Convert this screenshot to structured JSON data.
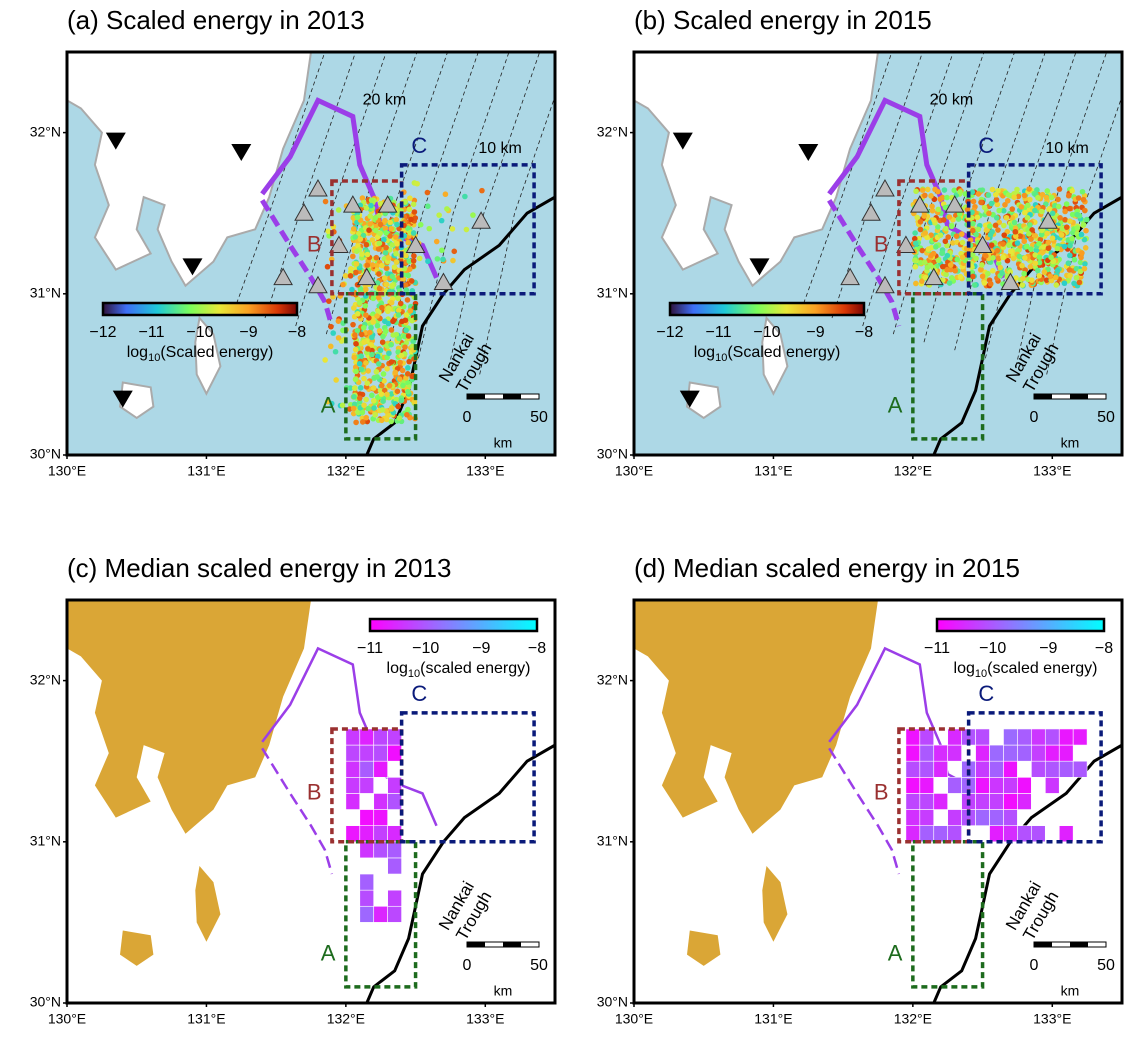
{
  "axes": {
    "lat_labels": [
      "32°N",
      "31°N",
      "30°N"
    ],
    "lon_labels": [
      "130°E",
      "131°E",
      "132°E",
      "133°E"
    ]
  },
  "map_labels": {
    "depth_20": "20 km",
    "depth_10": "10 km",
    "box_a": "A",
    "box_b": "B",
    "box_c": "C",
    "nankai": "Nankai",
    "trough": "Trough"
  },
  "scale_bar": {
    "ticks": [
      "0",
      "50"
    ],
    "unit": "km"
  },
  "panels": [
    {
      "title": "(a) Scaled energy in 2013",
      "colorbar": {
        "ticks": [
          "−12",
          "−11",
          "−10",
          "−9",
          "−8"
        ],
        "label_pre": "log",
        "label_sub": "10",
        "label_post": "(Scaled energy)"
      }
    },
    {
      "title": "(b) Scaled energy in 2015",
      "colorbar": {
        "ticks": [
          "−12",
          "−11",
          "−10",
          "−9",
          "−8"
        ],
        "label_pre": "log",
        "label_sub": "10",
        "label_post": "(Scaled energy)"
      }
    },
    {
      "title": "(c) Median scaled energy in 2013",
      "colorbar": {
        "ticks": [
          "−11",
          "−10",
          "−9",
          "−8"
        ],
        "label_pre": "log",
        "label_sub": "10",
        "label_post": "(scaled energy)"
      }
    },
    {
      "title": "(d) Median scaled energy in 2015",
      "colorbar": {
        "ticks": [
          "−11",
          "−10",
          "−9",
          "−8"
        ],
        "label_pre": "log",
        "label_sub": "10",
        "label_post": "(scaled energy)"
      }
    }
  ]
}
